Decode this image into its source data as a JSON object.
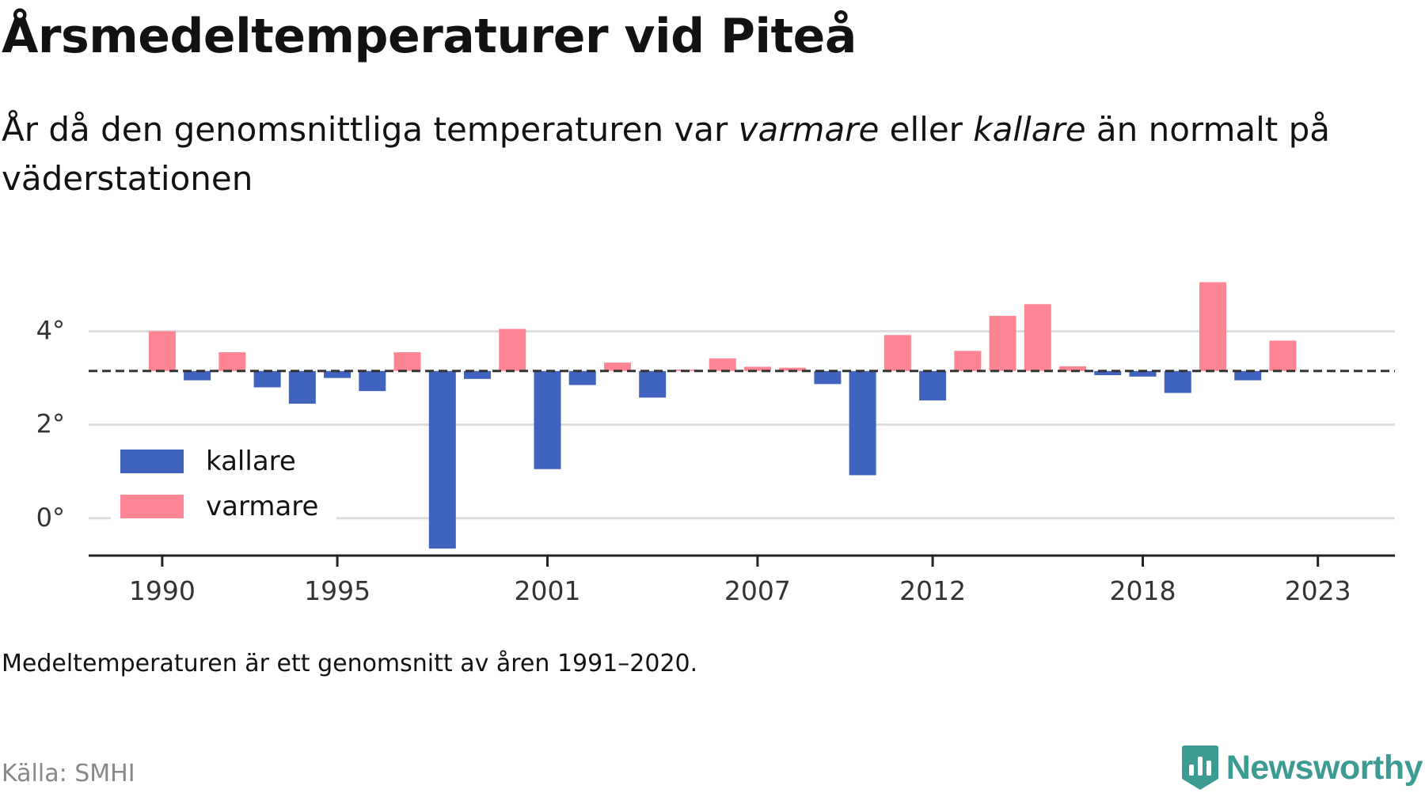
{
  "header": {
    "title": "Årsmedeltemperaturer vid Piteå",
    "subtitle_before": "År då den genomsnittliga temperaturen var ",
    "subtitle_warm": "varmare",
    "subtitle_middle": " eller ",
    "subtitle_cold": "kallare",
    "subtitle_after": " än normalt på väderstationen"
  },
  "footer": {
    "note": "Medeltemperaturen är ett genomsnitt av åren 1991–2020.",
    "source": "Källa: SMHI",
    "brand": "Newsworthy"
  },
  "colors": {
    "kallare": "#3f63be",
    "varmare": "#ff8494",
    "baseline": "#333333",
    "gridline": "#dddddd",
    "brand": "#3c9b92"
  },
  "chart_data": {
    "type": "bar",
    "normal": 3.15,
    "x": [
      1990,
      1991,
      1992,
      1993,
      1994,
      1995,
      1996,
      1997,
      1998,
      1999,
      2000,
      2001,
      2002,
      2003,
      2004,
      2005,
      2006,
      2007,
      2008,
      2009,
      2010,
      2011,
      2012,
      2013,
      2014,
      2015,
      2016,
      2017,
      2018,
      2019,
      2020,
      2021,
      2022
    ],
    "values": [
      4.0,
      2.95,
      3.55,
      2.8,
      2.45,
      3.0,
      2.72,
      3.55,
      -0.65,
      2.98,
      4.05,
      1.05,
      2.85,
      3.33,
      2.58,
      3.18,
      3.42,
      3.24,
      3.22,
      2.87,
      0.92,
      3.92,
      2.52,
      3.58,
      4.33,
      4.58,
      3.25,
      3.06,
      3.03,
      2.68,
      5.05,
      2.95,
      3.8
    ],
    "xticks": [
      "1990",
      "1995",
      "2001",
      "2007",
      "2012",
      "2018",
      "2023"
    ],
    "yticks": [
      "0°",
      "2°",
      "4°"
    ],
    "ytick_values": [
      0,
      2,
      4
    ],
    "ylim": [
      -0.8,
      5.5
    ],
    "xlim": [
      1987.9,
      2025.2
    ],
    "grid": true,
    "legend": [
      "kallare",
      "varmare"
    ],
    "legend_position": "bottom-left"
  }
}
